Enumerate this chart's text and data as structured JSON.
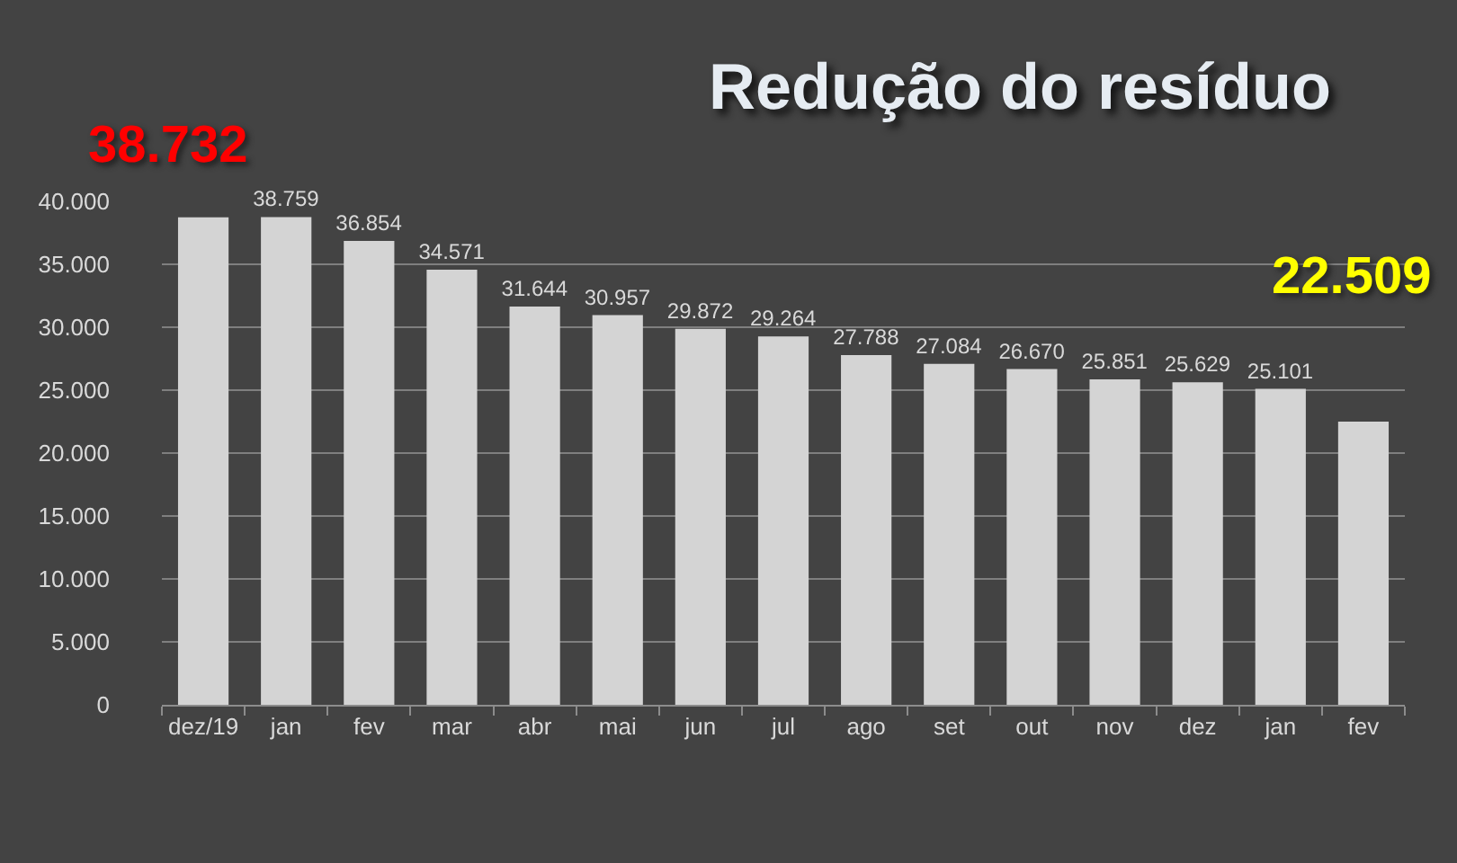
{
  "chart_data": {
    "type": "bar",
    "title": "Redução do resíduo",
    "categories": [
      "dez/19",
      "jan",
      "fev",
      "mar",
      "abr",
      "mai",
      "jun",
      "jul",
      "ago",
      "set",
      "out",
      "nov",
      "dez",
      "jan",
      "fev"
    ],
    "values": [
      38732,
      38759,
      36854,
      34571,
      31644,
      30957,
      29872,
      29264,
      27788,
      27084,
      26670,
      25851,
      25629,
      25101,
      22509
    ],
    "color": "#d4d4d4",
    "value_labels": [
      "38.732",
      "38.759",
      "36.854",
      "34.571",
      "31.644",
      "30.957",
      "29.872",
      "29.264",
      "27.788",
      "27.084",
      "26.670",
      "25.851",
      "25.629",
      "25.101",
      "22.509"
    ],
    "ylim": [
      0,
      40000
    ],
    "yticks": [
      0,
      {
        "value": 5000,
        "label": "5.000"
      },
      {
        "value": 10000,
        "label": "10.000"
      },
      {
        "value": 15000,
        "label": "15.000"
      },
      {
        "value": 20000,
        "label": "20.000"
      },
      {
        "value": 25000,
        "label": "25.000"
      },
      {
        "value": 30000,
        "label": "30.000"
      },
      {
        "value": 35000,
        "label": "35.000"
      },
      {
        "value": 40000,
        "label": "40.000"
      }
    ],
    "grid": "y"
  }
}
